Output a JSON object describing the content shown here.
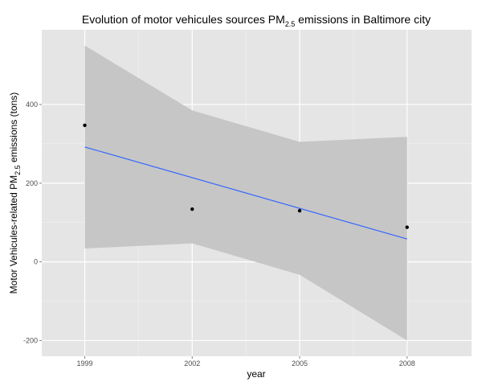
{
  "chart_data": {
    "type": "scatter",
    "title": {
      "prefix": "Evolution of motor vehicules sources PM",
      "subscript": "2.5",
      "suffix": " emissions in Baltimore city"
    },
    "xlabel": "year",
    "ylabel": {
      "prefix": "Motor Vehicules-related PM",
      "subscript": "2.5",
      "suffix": " emissions (tons)"
    },
    "x_ticks": [
      1999,
      2002,
      2005,
      2008
    ],
    "y_ticks": [
      -200,
      0,
      200,
      400
    ],
    "xlim": [
      1997.8,
      2009.8
    ],
    "ylim": [
      -240,
      590
    ],
    "grid": true,
    "points": [
      {
        "x": 1999,
        "y": 347
      },
      {
        "x": 2002,
        "y": 134
      },
      {
        "x": 2005,
        "y": 130
      },
      {
        "x": 2008,
        "y": 88
      }
    ],
    "fit_line": {
      "x": [
        1999,
        2008
      ],
      "y": [
        292,
        58
      ]
    },
    "confidence_band": {
      "x": [
        1999,
        2002,
        2005,
        2008
      ],
      "upper": [
        550,
        385,
        305,
        318
      ],
      "lower": [
        34,
        47,
        -33,
        -200
      ]
    },
    "colors": {
      "panel": "#e5e5e5",
      "grid_major": "#ffffff",
      "grid_minor": "#f2f2f2",
      "band": "#c6c6c6",
      "line": "#3366ff",
      "point": "#000000"
    }
  }
}
